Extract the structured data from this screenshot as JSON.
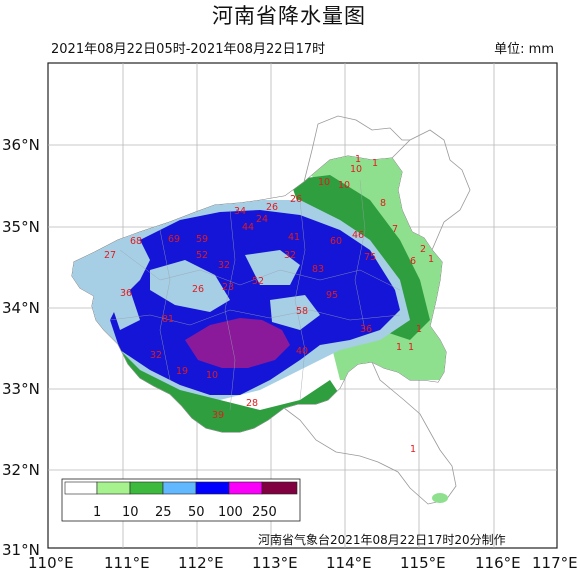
{
  "title": "河南省降水量图",
  "date_range": "2021年08月22日05时-2021年08月22日17时",
  "unit": "单位: mm",
  "footer": "河南省气象台2021年08月22日17时20分制作",
  "lat_labels": [
    "36°N",
    "35°N",
    "34°N",
    "33°N",
    "32°N",
    "31°N"
  ],
  "lon_labels": [
    "110°E",
    "111°E",
    "112°E",
    "113°E",
    "114°E",
    "115°E",
    "116°E",
    "117°E"
  ],
  "legend": {
    "ticks": [
      "1",
      "10",
      "25",
      "50",
      "100",
      "250"
    ],
    "colors": [
      "#ffffff",
      "#a6f28f",
      "#3dba3d",
      "#61b8ff",
      "#0000ff",
      "#fa00fa",
      "#800040"
    ]
  },
  "colors": {
    "light_green": "#8ee08e",
    "green": "#2e9e3e",
    "light_blue": "#a6cfe6",
    "blue": "#1515d8",
    "purple": "#8a1a9a",
    "gridline": "#b8b8b8",
    "label_red": "#e41a1c"
  },
  "rain_points": [
    {
      "v": "1"
    },
    {
      "v": "1"
    },
    {
      "v": "10"
    },
    {
      "v": "10"
    },
    {
      "v": "10"
    },
    {
      "v": "8"
    },
    {
      "v": "34"
    },
    {
      "v": "26"
    },
    {
      "v": "26"
    },
    {
      "v": "24"
    },
    {
      "v": "44"
    },
    {
      "v": "7"
    },
    {
      "v": "27"
    },
    {
      "v": "68"
    },
    {
      "v": "69"
    },
    {
      "v": "59"
    },
    {
      "v": "41"
    },
    {
      "v": "60"
    },
    {
      "v": "46"
    },
    {
      "v": "2"
    },
    {
      "v": "6"
    },
    {
      "v": "1"
    },
    {
      "v": "52"
    },
    {
      "v": "32"
    },
    {
      "v": "32"
    },
    {
      "v": "75"
    },
    {
      "v": "36"
    },
    {
      "v": "26"
    },
    {
      "v": "23"
    },
    {
      "v": "52"
    },
    {
      "v": "83"
    },
    {
      "v": "95"
    },
    {
      "v": "81"
    },
    {
      "v": "58"
    },
    {
      "v": "36"
    },
    {
      "v": "1"
    },
    {
      "v": "1"
    },
    {
      "v": "1"
    },
    {
      "v": "32"
    },
    {
      "v": "19"
    },
    {
      "v": "10"
    },
    {
      "v": "40"
    },
    {
      "v": "39"
    },
    {
      "v": "28"
    },
    {
      "v": "1"
    }
  ]
}
